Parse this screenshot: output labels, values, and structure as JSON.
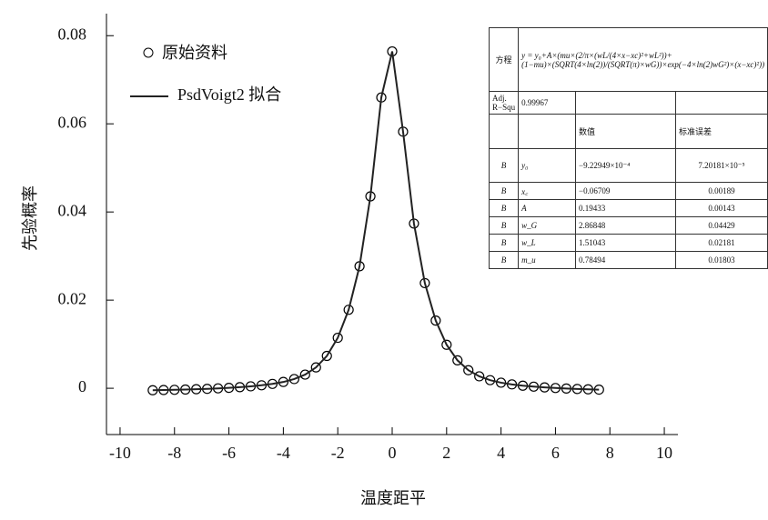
{
  "chart_data": {
    "type": "scatter",
    "x_label": "温度距平",
    "y_label": "先验概率",
    "xlim": [
      -10.5,
      10.5
    ],
    "ylim": [
      -0.0105,
      0.085
    ],
    "xticks": [
      -10,
      -8,
      -6,
      -4,
      -2,
      0,
      2,
      4,
      6,
      8,
      10
    ],
    "yticks": [
      0,
      0.02,
      0.04,
      0.06,
      0.08
    ],
    "x": [
      -8.8,
      -8.4,
      -8.0,
      -7.6,
      -7.2,
      -6.8,
      -6.4,
      -6.0,
      -5.6,
      -5.2,
      -4.8,
      -4.4,
      -4.0,
      -3.6,
      -3.2,
      -2.8,
      -2.4,
      -2.0,
      -1.6,
      -1.2,
      -0.8,
      -0.4,
      0.0,
      0.4,
      0.8,
      1.2,
      1.6,
      2.0,
      2.4,
      2.8,
      3.2,
      3.6,
      4.0,
      4.4,
      4.8,
      5.2,
      5.6,
      6.0,
      6.4,
      6.8,
      7.2,
      7.6
    ],
    "series": [
      {
        "name": "原始资料",
        "mode": "markers",
        "color": "#000000",
        "values": [
          -0.00045,
          -0.0004,
          -0.00035,
          -0.00029,
          -0.00021,
          -0.00013,
          -2e-05,
          0.0001,
          0.00025,
          0.00044,
          0.00068,
          0.00099,
          0.00143,
          0.00209,
          0.0031,
          0.00473,
          0.00734,
          0.01145,
          0.0178,
          0.02768,
          0.04354,
          0.06598,
          0.07643,
          0.05822,
          0.03737,
          0.02386,
          0.01536,
          0.00987,
          0.00633,
          0.0041,
          0.00271,
          0.00184,
          0.00127,
          0.00088,
          0.00059,
          0.00037,
          0.0002,
          6e-05,
          -6e-05,
          -0.00016,
          -0.00024,
          -0.00031
        ]
      },
      {
        "name": "PsdVoigt2 拟合",
        "mode": "line",
        "color": "#222222",
        "values": [
          -0.00045,
          -0.0004,
          -0.00035,
          -0.00029,
          -0.00021,
          -0.00013,
          -2e-05,
          0.0001,
          0.00025,
          0.00044,
          0.00068,
          0.00099,
          0.00143,
          0.00209,
          0.0031,
          0.00473,
          0.00734,
          0.01145,
          0.0178,
          0.02768,
          0.04354,
          0.06598,
          0.07643,
          0.05822,
          0.03737,
          0.02386,
          0.01536,
          0.00987,
          0.00633,
          0.0041,
          0.00271,
          0.00184,
          0.00127,
          0.00088,
          0.00059,
          0.00037,
          0.0002,
          6e-05,
          -6e-05,
          -0.00016,
          -0.00024,
          -0.00031
        ]
      }
    ],
    "inset_table": {
      "equation_label": "方程",
      "equation": "y = y₀+A×(mu×(2/π×(wL/(4×x−xc)²+wL²))+(1−mu)×(SQRT(4×ln(2))/(SQRT(π)×wG))×exp(−4×ln(2)wG²)×(x−xc)²))",
      "adj_label": "Adj. R−Squ",
      "adj_value": "0.99967",
      "headers": [
        "数值",
        "标准误差"
      ],
      "rows": [
        [
          "B",
          "y₀",
          "−9.22949×10⁻⁴",
          "7.20181×10⁻⁵"
        ],
        [
          "B",
          "x꜀",
          "−0.06709",
          "0.00189"
        ],
        [
          "B",
          "A",
          "0.19433",
          "0.00143"
        ],
        [
          "B",
          "w_G",
          "2.86848",
          "0.04429"
        ],
        [
          "B",
          "w_L",
          "1.51043",
          "0.02181"
        ],
        [
          "B",
          "m_u",
          "0.78494",
          "0.01803"
        ]
      ]
    }
  }
}
